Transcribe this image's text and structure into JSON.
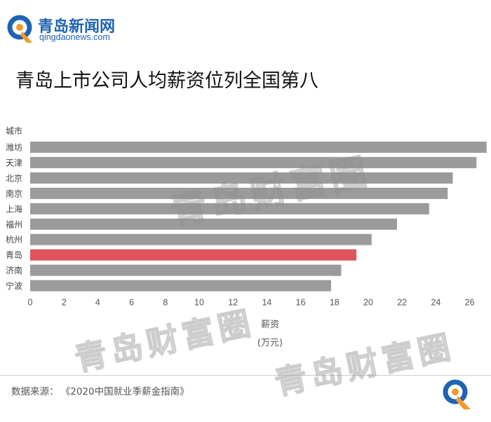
{
  "brand": {
    "name_cn": "青岛新闻网",
    "domain": "qingdaonews.com"
  },
  "headline": "青岛上市公司人均薪资位列全国第八",
  "watermark": "青岛财富圈",
  "source": {
    "label": "数据来源：",
    "value": "《2020中国就业季薪金指南》"
  },
  "colors": {
    "bar_default": "#9b9b9b",
    "bar_highlight": "#e0545c",
    "brand_blue": "#1e63b5",
    "brand_orange": "#f39a2b"
  },
  "chart_data": {
    "type": "bar",
    "orientation": "horizontal",
    "category_axis_label": "城市",
    "xlabel": "薪资",
    "xunit": "(万元)",
    "categories": [
      "潍坊",
      "天津",
      "北京",
      "南京",
      "上海",
      "福州",
      "杭州",
      "青岛",
      "济南",
      "宁波"
    ],
    "values": [
      27.0,
      26.4,
      25.0,
      24.7,
      23.6,
      21.7,
      20.2,
      19.3,
      18.4,
      17.8
    ],
    "highlight": "青岛",
    "xlim": [
      0,
      27
    ],
    "xticks": [
      "0",
      "2",
      "4",
      "6",
      "8",
      "10",
      "12",
      "14",
      "16",
      "18",
      "20",
      "22",
      "24",
      "26"
    ],
    "grid": false,
    "legend": "none"
  }
}
